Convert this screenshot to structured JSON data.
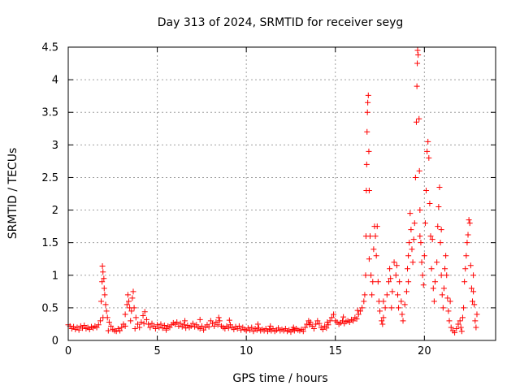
{
  "chart_data": {
    "type": "scatter",
    "title": "Day 313 of 2024, SRMTID for receiver seyg",
    "xlabel": "GPS time / hours",
    "ylabel": "SRMTID / TECUs",
    "xlim": [
      0,
      24
    ],
    "ylim": [
      0,
      4.5
    ],
    "x_ticks": [
      0,
      5,
      10,
      15,
      20
    ],
    "y_ticks": [
      0,
      0.5,
      1,
      1.5,
      2,
      2.5,
      3,
      3.5,
      4,
      4.5
    ],
    "x_tick_labels": [
      "0",
      "5",
      "10",
      "15",
      "20"
    ],
    "y_tick_labels": [
      "0",
      "0.5",
      "1",
      "1.5",
      "2",
      "2.5",
      "3",
      "3.5",
      "4",
      "4.5"
    ],
    "grid": true,
    "marker": "+",
    "marker_color": "#ff0000",
    "series": [
      {
        "name": "SRMTID",
        "points": [
          [
            0.0,
            0.24
          ],
          [
            0.1,
            0.22
          ],
          [
            0.2,
            0.18
          ],
          [
            0.3,
            0.21
          ],
          [
            0.4,
            0.17
          ],
          [
            0.5,
            0.2
          ],
          [
            0.6,
            0.16
          ],
          [
            0.7,
            0.22
          ],
          [
            0.8,
            0.19
          ],
          [
            0.9,
            0.23
          ],
          [
            1.0,
            0.18
          ],
          [
            1.1,
            0.2
          ],
          [
            1.2,
            0.17
          ],
          [
            1.3,
            0.21
          ],
          [
            1.4,
            0.19
          ],
          [
            1.5,
            0.22
          ],
          [
            1.6,
            0.2
          ],
          [
            1.7,
            0.24
          ],
          [
            1.8,
            0.3
          ],
          [
            1.85,
            0.6
          ],
          [
            1.9,
            0.9
          ],
          [
            1.92,
            1.14
          ],
          [
            1.95,
            1.05
          ],
          [
            2.0,
            0.95
          ],
          [
            2.02,
            0.8
          ],
          [
            2.05,
            0.7
          ],
          [
            2.1,
            0.55
          ],
          [
            2.15,
            0.45
          ],
          [
            2.2,
            0.35
          ],
          [
            2.3,
            0.28
          ],
          [
            2.4,
            0.22
          ],
          [
            2.5,
            0.17
          ],
          [
            2.6,
            0.15
          ],
          [
            2.7,
            0.14
          ],
          [
            2.8,
            0.18
          ],
          [
            2.9,
            0.15
          ],
          [
            3.0,
            0.2
          ],
          [
            3.1,
            0.25
          ],
          [
            3.2,
            0.4
          ],
          [
            3.3,
            0.55
          ],
          [
            3.35,
            0.7
          ],
          [
            3.4,
            0.6
          ],
          [
            3.45,
            0.5
          ],
          [
            3.5,
            0.3
          ],
          [
            3.55,
            0.45
          ],
          [
            3.6,
            0.65
          ],
          [
            3.65,
            0.75
          ],
          [
            3.7,
            0.5
          ],
          [
            3.8,
            0.35
          ],
          [
            3.9,
            0.25
          ],
          [
            4.0,
            0.2
          ],
          [
            4.1,
            0.28
          ],
          [
            4.2,
            0.38
          ],
          [
            4.3,
            0.44
          ],
          [
            4.4,
            0.32
          ],
          [
            4.5,
            0.25
          ],
          [
            4.6,
            0.2
          ],
          [
            4.7,
            0.26
          ],
          [
            4.8,
            0.22
          ],
          [
            4.9,
            0.18
          ],
          [
            5.0,
            0.24
          ],
          [
            5.1,
            0.2
          ],
          [
            5.2,
            0.25
          ],
          [
            5.3,
            0.19
          ],
          [
            5.4,
            0.23
          ],
          [
            5.5,
            0.18
          ],
          [
            5.6,
            0.22
          ],
          [
            5.7,
            0.2
          ],
          [
            5.8,
            0.24
          ],
          [
            5.9,
            0.27
          ],
          [
            6.0,
            0.25
          ],
          [
            6.1,
            0.28
          ],
          [
            6.2,
            0.22
          ],
          [
            6.3,
            0.26
          ],
          [
            6.4,
            0.21
          ],
          [
            6.5,
            0.24
          ],
          [
            6.6,
            0.19
          ],
          [
            6.7,
            0.23
          ],
          [
            6.8,
            0.2
          ],
          [
            6.9,
            0.22
          ],
          [
            7.0,
            0.26
          ],
          [
            7.1,
            0.21
          ],
          [
            7.2,
            0.24
          ],
          [
            7.3,
            0.2
          ],
          [
            7.4,
            0.18
          ],
          [
            7.5,
            0.22
          ],
          [
            7.6,
            0.16
          ],
          [
            7.7,
            0.2
          ],
          [
            7.8,
            0.24
          ],
          [
            7.9,
            0.21
          ],
          [
            8.0,
            0.3
          ],
          [
            8.1,
            0.26
          ],
          [
            8.2,
            0.22
          ],
          [
            8.3,
            0.28
          ],
          [
            8.4,
            0.24
          ],
          [
            8.5,
            0.3
          ],
          [
            8.6,
            0.22
          ],
          [
            8.7,
            0.2
          ],
          [
            8.8,
            0.18
          ],
          [
            8.9,
            0.22
          ],
          [
            9.0,
            0.19
          ],
          [
            9.1,
            0.24
          ],
          [
            9.2,
            0.2
          ],
          [
            9.3,
            0.17
          ],
          [
            9.4,
            0.21
          ],
          [
            9.5,
            0.18
          ],
          [
            9.6,
            0.22
          ],
          [
            9.7,
            0.16
          ],
          [
            9.8,
            0.2
          ],
          [
            9.9,
            0.17
          ],
          [
            10.0,
            0.15
          ],
          [
            10.1,
            0.19
          ],
          [
            10.2,
            0.16
          ],
          [
            10.3,
            0.2
          ],
          [
            10.4,
            0.14
          ],
          [
            10.5,
            0.18
          ],
          [
            10.6,
            0.16
          ],
          [
            10.7,
            0.19
          ],
          [
            10.8,
            0.15
          ],
          [
            10.9,
            0.17
          ],
          [
            11.0,
            0.15
          ],
          [
            11.1,
            0.18
          ],
          [
            11.2,
            0.14
          ],
          [
            11.3,
            0.17
          ],
          [
            11.4,
            0.15
          ],
          [
            11.5,
            0.18
          ],
          [
            11.6,
            0.14
          ],
          [
            11.7,
            0.16
          ],
          [
            11.8,
            0.19
          ],
          [
            11.9,
            0.15
          ],
          [
            12.0,
            0.17
          ],
          [
            12.1,
            0.15
          ],
          [
            12.2,
            0.18
          ],
          [
            12.3,
            0.14
          ],
          [
            12.4,
            0.16
          ],
          [
            12.5,
            0.13
          ],
          [
            12.6,
            0.17
          ],
          [
            12.7,
            0.15
          ],
          [
            12.8,
            0.18
          ],
          [
            12.9,
            0.16
          ],
          [
            13.0,
            0.15
          ],
          [
            13.1,
            0.17
          ],
          [
            13.2,
            0.14
          ],
          [
            13.3,
            0.2
          ],
          [
            13.4,
            0.25
          ],
          [
            13.5,
            0.3
          ],
          [
            13.6,
            0.28
          ],
          [
            13.7,
            0.22
          ],
          [
            13.8,
            0.18
          ],
          [
            13.9,
            0.25
          ],
          [
            14.0,
            0.3
          ],
          [
            14.1,
            0.26
          ],
          [
            14.2,
            0.2
          ],
          [
            14.3,
            0.17
          ],
          [
            14.4,
            0.22
          ],
          [
            14.5,
            0.19
          ],
          [
            14.6,
            0.24
          ],
          [
            14.7,
            0.3
          ],
          [
            14.8,
            0.35
          ],
          [
            14.9,
            0.4
          ],
          [
            15.0,
            0.3
          ],
          [
            15.1,
            0.28
          ],
          [
            15.2,
            0.25
          ],
          [
            15.3,
            0.27
          ],
          [
            15.4,
            0.3
          ],
          [
            15.5,
            0.26
          ],
          [
            15.6,
            0.29
          ],
          [
            15.7,
            0.3
          ],
          [
            15.8,
            0.28
          ],
          [
            15.9,
            0.32
          ],
          [
            16.0,
            0.3
          ],
          [
            16.1,
            0.35
          ],
          [
            16.2,
            0.33
          ],
          [
            16.3,
            0.4
          ],
          [
            16.4,
            0.45
          ],
          [
            16.5,
            0.5
          ],
          [
            16.6,
            0.6
          ],
          [
            16.65,
            0.7
          ],
          [
            16.7,
            1.0
          ],
          [
            16.72,
            1.6
          ],
          [
            16.74,
            2.3
          ],
          [
            16.76,
            2.7
          ],
          [
            16.78,
            3.2
          ],
          [
            16.8,
            3.5
          ],
          [
            16.82,
            3.65
          ],
          [
            16.85,
            3.76
          ],
          [
            16.88,
            2.9
          ],
          [
            16.9,
            2.3
          ],
          [
            16.95,
            1.6
          ],
          [
            17.0,
            1.0
          ],
          [
            17.05,
            0.7
          ],
          [
            17.1,
            0.9
          ],
          [
            17.15,
            1.4
          ],
          [
            17.2,
            1.75
          ],
          [
            17.25,
            1.6
          ],
          [
            17.3,
            1.3
          ],
          [
            17.4,
            0.9
          ],
          [
            17.45,
            0.6
          ],
          [
            17.5,
            0.45
          ],
          [
            17.6,
            0.3
          ],
          [
            17.65,
            0.25
          ],
          [
            17.7,
            0.35
          ],
          [
            17.8,
            0.5
          ],
          [
            17.9,
            0.7
          ],
          [
            18.0,
            0.9
          ],
          [
            18.05,
            1.1
          ],
          [
            18.1,
            0.95
          ],
          [
            18.2,
            0.75
          ],
          [
            18.3,
            1.2
          ],
          [
            18.4,
            1.0
          ],
          [
            18.5,
            0.7
          ],
          [
            18.55,
            0.5
          ],
          [
            18.6,
            0.9
          ],
          [
            18.7,
            0.6
          ],
          [
            18.75,
            0.4
          ],
          [
            18.8,
            0.3
          ],
          [
            18.9,
            0.55
          ],
          [
            19.0,
            0.75
          ],
          [
            19.05,
            1.1
          ],
          [
            19.1,
            1.3
          ],
          [
            19.15,
            1.5
          ],
          [
            19.2,
            1.95
          ],
          [
            19.25,
            1.7
          ],
          [
            19.3,
            1.4
          ],
          [
            19.35,
            1.2
          ],
          [
            19.4,
            1.55
          ],
          [
            19.45,
            1.8
          ],
          [
            19.5,
            2.5
          ],
          [
            19.55,
            3.35
          ],
          [
            19.58,
            3.9
          ],
          [
            19.6,
            4.25
          ],
          [
            19.62,
            4.45
          ],
          [
            19.65,
            4.38
          ],
          [
            19.7,
            3.4
          ],
          [
            19.72,
            2.6
          ],
          [
            19.75,
            2.0
          ],
          [
            19.8,
            1.5
          ],
          [
            19.85,
            1.2
          ],
          [
            19.9,
            1.0
          ],
          [
            19.95,
            0.85
          ],
          [
            20.0,
            1.3
          ],
          [
            20.05,
            1.8
          ],
          [
            20.1,
            2.3
          ],
          [
            20.15,
            2.9
          ],
          [
            20.2,
            3.05
          ],
          [
            20.25,
            2.8
          ],
          [
            20.3,
            2.1
          ],
          [
            20.35,
            1.6
          ],
          [
            20.4,
            1.1
          ],
          [
            20.5,
            0.8
          ],
          [
            20.55,
            0.6
          ],
          [
            20.6,
            0.9
          ],
          [
            20.7,
            1.2
          ],
          [
            20.75,
            1.75
          ],
          [
            20.8,
            2.05
          ],
          [
            20.85,
            2.35
          ],
          [
            20.9,
            1.5
          ],
          [
            20.95,
            1.0
          ],
          [
            21.0,
            0.7
          ],
          [
            21.05,
            0.5
          ],
          [
            21.1,
            0.8
          ],
          [
            21.15,
            1.1
          ],
          [
            21.2,
            1.3
          ],
          [
            21.25,
            1.0
          ],
          [
            21.3,
            0.65
          ],
          [
            21.35,
            0.45
          ],
          [
            21.4,
            0.3
          ],
          [
            21.5,
            0.2
          ],
          [
            21.6,
            0.15
          ],
          [
            21.7,
            0.12
          ],
          [
            21.8,
            0.18
          ],
          [
            21.9,
            0.25
          ],
          [
            22.0,
            0.3
          ],
          [
            22.05,
            0.2
          ],
          [
            22.1,
            0.14
          ],
          [
            22.2,
            0.5
          ],
          [
            22.25,
            0.9
          ],
          [
            22.3,
            1.1
          ],
          [
            22.35,
            1.3
          ],
          [
            22.4,
            1.5
          ],
          [
            22.45,
            1.62
          ],
          [
            22.5,
            1.85
          ],
          [
            22.55,
            1.8
          ],
          [
            22.6,
            1.15
          ],
          [
            22.65,
            0.8
          ],
          [
            22.7,
            0.6
          ],
          [
            22.75,
            0.75
          ],
          [
            22.8,
            0.55
          ],
          [
            22.85,
            0.3
          ],
          [
            22.9,
            0.2
          ],
          [
            1.95,
            0.35
          ],
          [
            2.25,
            0.15
          ],
          [
            3.2,
            0.22
          ],
          [
            3.75,
            0.18
          ],
          [
            4.25,
            0.26
          ],
          [
            5.5,
            0.16
          ],
          [
            6.55,
            0.3
          ],
          [
            7.4,
            0.32
          ],
          [
            8.45,
            0.35
          ],
          [
            9.05,
            0.31
          ],
          [
            10.65,
            0.25
          ],
          [
            11.35,
            0.22
          ],
          [
            12.65,
            0.2
          ],
          [
            13.55,
            0.24
          ],
          [
            14.55,
            0.28
          ],
          [
            15.45,
            0.36
          ],
          [
            16.25,
            0.46
          ],
          [
            16.9,
            1.25
          ],
          [
            17.35,
            1.75
          ],
          [
            17.7,
            0.6
          ],
          [
            18.15,
            0.5
          ],
          [
            18.45,
            1.15
          ],
          [
            19.1,
            0.9
          ],
          [
            19.75,
            1.6
          ],
          [
            20.45,
            1.55
          ],
          [
            20.95,
            1.7
          ],
          [
            21.45,
            0.6
          ],
          [
            22.15,
            0.35
          ],
          [
            22.75,
            1.0
          ],
          [
            22.95,
            0.4
          ]
        ]
      }
    ]
  }
}
